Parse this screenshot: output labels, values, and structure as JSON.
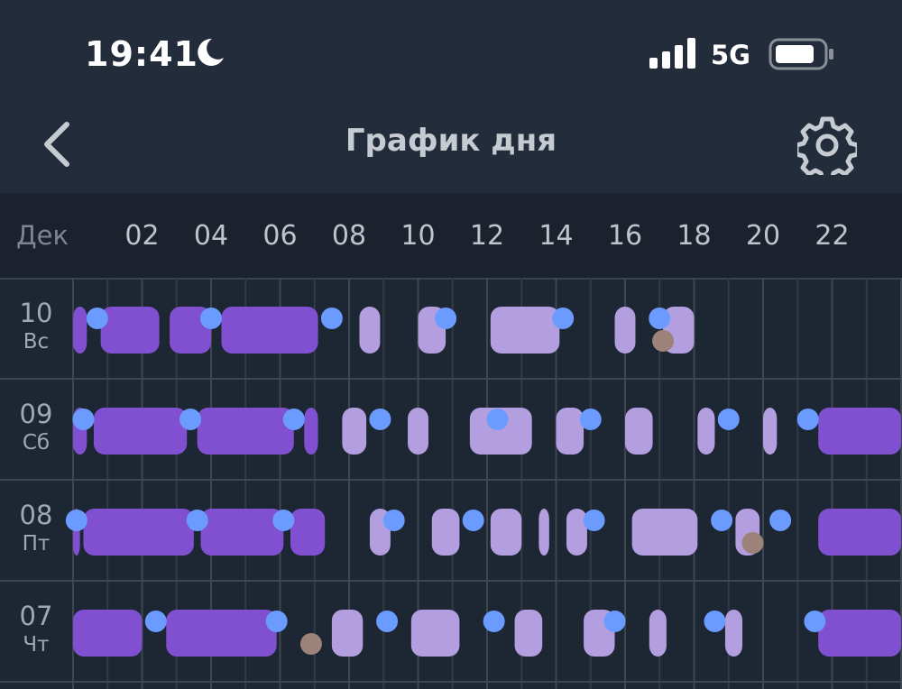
{
  "status": {
    "time": "19:41",
    "network": "5G"
  },
  "nav": {
    "title": "График дня"
  },
  "axis": {
    "month": "Дек",
    "hours": [
      "02",
      "04",
      "06",
      "08",
      "10",
      "12",
      "14",
      "16",
      "18",
      "20",
      "22"
    ]
  },
  "colors": {
    "deep": "#8150d1",
    "light": "#b39ee0",
    "dot": "#6b9bff",
    "dot_brown": "#9c8279"
  },
  "rows": [
    {
      "date": "10",
      "weekday": "Вс",
      "blocks": [
        [
          0,
          0.4,
          "deep"
        ],
        [
          0.8,
          2.5,
          "deep"
        ],
        [
          2.8,
          4.0,
          "deep"
        ],
        [
          4.3,
          7.1,
          "deep"
        ],
        [
          8.3,
          8.9,
          "light"
        ],
        [
          10.0,
          10.8,
          "light"
        ],
        [
          12.1,
          14.1,
          "light"
        ],
        [
          15.7,
          16.3,
          "light"
        ],
        [
          17.1,
          18.0,
          "light"
        ]
      ],
      "dots": [
        [
          0.7,
          "dot"
        ],
        [
          4.0,
          "dot"
        ],
        [
          7.5,
          "dot"
        ],
        [
          10.8,
          "dot"
        ],
        [
          14.2,
          "dot"
        ],
        [
          17.0,
          "dot"
        ],
        [
          17.1,
          "dot_brown",
          "low"
        ]
      ]
    },
    {
      "date": "09",
      "weekday": "Сб",
      "blocks": [
        [
          0,
          0.4,
          "deep"
        ],
        [
          0.6,
          3.3,
          "deep"
        ],
        [
          3.6,
          6.4,
          "deep"
        ],
        [
          6.7,
          7.1,
          "deep"
        ],
        [
          7.8,
          8.5,
          "light"
        ],
        [
          9.7,
          10.3,
          "light"
        ],
        [
          11.5,
          13.3,
          "light"
        ],
        [
          14.0,
          14.8,
          "light"
        ],
        [
          16.0,
          16.8,
          "light"
        ],
        [
          18.1,
          18.6,
          "light"
        ],
        [
          20.0,
          20.4,
          "light"
        ],
        [
          21.6,
          24.0,
          "deep"
        ]
      ],
      "dots": [
        [
          0.3,
          "dot"
        ],
        [
          3.4,
          "dot"
        ],
        [
          6.4,
          "dot"
        ],
        [
          8.9,
          "dot"
        ],
        [
          12.3,
          "dot"
        ],
        [
          15.0,
          "dot"
        ],
        [
          19.0,
          "dot"
        ],
        [
          21.3,
          "dot"
        ]
      ]
    },
    {
      "date": "08",
      "weekday": "Пт",
      "blocks": [
        [
          0,
          0.2,
          "deep"
        ],
        [
          0.3,
          3.5,
          "deep"
        ],
        [
          3.7,
          6.1,
          "deep"
        ],
        [
          6.3,
          7.3,
          "deep"
        ],
        [
          8.6,
          9.2,
          "light"
        ],
        [
          10.4,
          11.2,
          "light"
        ],
        [
          12.1,
          13.0,
          "light"
        ],
        [
          13.5,
          13.8,
          "light"
        ],
        [
          14.3,
          14.9,
          "light"
        ],
        [
          16.2,
          18.1,
          "light"
        ],
        [
          19.2,
          19.9,
          "light"
        ],
        [
          21.6,
          24.0,
          "deep"
        ]
      ],
      "dots": [
        [
          0.1,
          "dot"
        ],
        [
          3.6,
          "dot"
        ],
        [
          6.1,
          "dot"
        ],
        [
          9.3,
          "dot"
        ],
        [
          11.6,
          "dot"
        ],
        [
          15.1,
          "dot"
        ],
        [
          18.8,
          "dot"
        ],
        [
          20.5,
          "dot"
        ],
        [
          19.7,
          "dot_brown",
          "low"
        ]
      ]
    },
    {
      "date": "07",
      "weekday": "Чт",
      "blocks": [
        [
          0,
          2.0,
          "deep"
        ],
        [
          2.7,
          5.9,
          "deep"
        ],
        [
          7.5,
          8.4,
          "light"
        ],
        [
          9.8,
          11.2,
          "light"
        ],
        [
          12.8,
          13.6,
          "light"
        ],
        [
          14.8,
          15.7,
          "light"
        ],
        [
          16.7,
          17.2,
          "light"
        ],
        [
          18.9,
          19.4,
          "light"
        ],
        [
          21.6,
          24.0,
          "deep"
        ]
      ],
      "dots": [
        [
          2.4,
          "dot"
        ],
        [
          5.9,
          "dot"
        ],
        [
          9.1,
          "dot"
        ],
        [
          12.2,
          "dot"
        ],
        [
          15.7,
          "dot"
        ],
        [
          18.6,
          "dot"
        ],
        [
          21.5,
          "dot"
        ],
        [
          6.9,
          "dot_brown",
          "low"
        ]
      ]
    }
  ]
}
